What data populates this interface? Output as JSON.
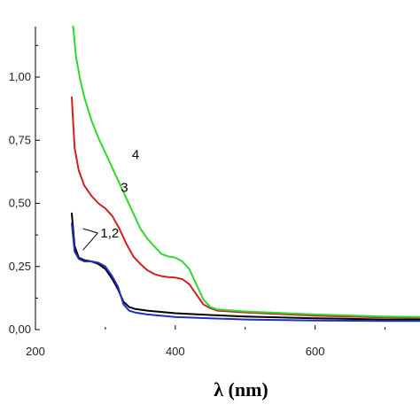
{
  "chart_data": {
    "type": "line",
    "title": "",
    "xlabel": "λ (nm)",
    "ylabel": "",
    "xlim": [
      200,
      750
    ],
    "ylim": [
      0,
      1.2
    ],
    "grid": false,
    "legend": "none",
    "x_ticks": [
      {
        "value": 200,
        "label": "200"
      },
      {
        "value": 400,
        "label": "400"
      },
      {
        "value": 600,
        "label": "600"
      }
    ],
    "y_ticks": [
      {
        "value": 0,
        "label": "0,00"
      },
      {
        "value": 0.25,
        "label": "0,25"
      },
      {
        "value": 0.5,
        "label": "0,50"
      },
      {
        "value": 0.75,
        "label": "0,75"
      },
      {
        "value": 1.0,
        "label": "1,00"
      }
    ],
    "series": [
      {
        "curve": "black",
        "color": "#000000",
        "x": [
          252,
          256,
          262,
          270,
          280,
          290,
          300,
          310,
          318,
          326,
          334,
          342,
          360,
          400,
          450,
          500,
          600,
          700,
          750
        ],
        "y": [
          0.46,
          0.33,
          0.285,
          0.275,
          0.27,
          0.26,
          0.24,
          0.2,
          0.16,
          0.11,
          0.09,
          0.082,
          0.075,
          0.065,
          0.058,
          0.052,
          0.045,
          0.04,
          0.04
        ]
      },
      {
        "curve": "blue",
        "color": "#1f2fbf",
        "x": [
          252,
          256,
          262,
          270,
          280,
          290,
          300,
          310,
          318,
          326,
          334,
          342,
          360,
          400,
          450,
          500,
          600,
          700,
          750
        ],
        "y": [
          0.42,
          0.31,
          0.28,
          0.27,
          0.27,
          0.265,
          0.25,
          0.21,
          0.17,
          0.1,
          0.075,
          0.068,
          0.06,
          0.05,
          0.045,
          0.04,
          0.036,
          0.034,
          0.034
        ]
      },
      {
        "curve": "red",
        "color": "#d02020",
        "x": [
          252,
          256,
          262,
          270,
          280,
          290,
          300,
          310,
          320,
          330,
          340,
          350,
          360,
          370,
          380,
          390,
          400,
          410,
          420,
          430,
          440,
          450,
          460,
          500,
          600,
          700,
          750
        ],
        "y": [
          0.92,
          0.72,
          0.63,
          0.57,
          0.53,
          0.5,
          0.48,
          0.45,
          0.4,
          0.34,
          0.29,
          0.26,
          0.235,
          0.22,
          0.212,
          0.208,
          0.206,
          0.2,
          0.18,
          0.14,
          0.1,
          0.085,
          0.075,
          0.068,
          0.055,
          0.048,
          0.047
        ]
      },
      {
        "curve": "green",
        "color": "#2ed82e",
        "x": [
          254,
          258,
          264,
          270,
          280,
          290,
          300,
          310,
          320,
          330,
          340,
          350,
          360,
          370,
          380,
          390,
          400,
          410,
          420,
          430,
          440,
          450,
          460,
          500,
          600,
          700,
          750
        ],
        "y": [
          1.2,
          1.08,
          0.99,
          0.92,
          0.83,
          0.76,
          0.7,
          0.64,
          0.58,
          0.52,
          0.46,
          0.4,
          0.36,
          0.33,
          0.3,
          0.29,
          0.285,
          0.27,
          0.24,
          0.18,
          0.12,
          0.09,
          0.08,
          0.072,
          0.06,
          0.052,
          0.05
        ]
      }
    ],
    "annotations": [
      {
        "text": "4",
        "x": 338,
        "y": 0.675
      },
      {
        "text": "3",
        "x": 322,
        "y": 0.545
      },
      {
        "text": "1,2",
        "x": 293,
        "y": 0.365
      }
    ]
  }
}
